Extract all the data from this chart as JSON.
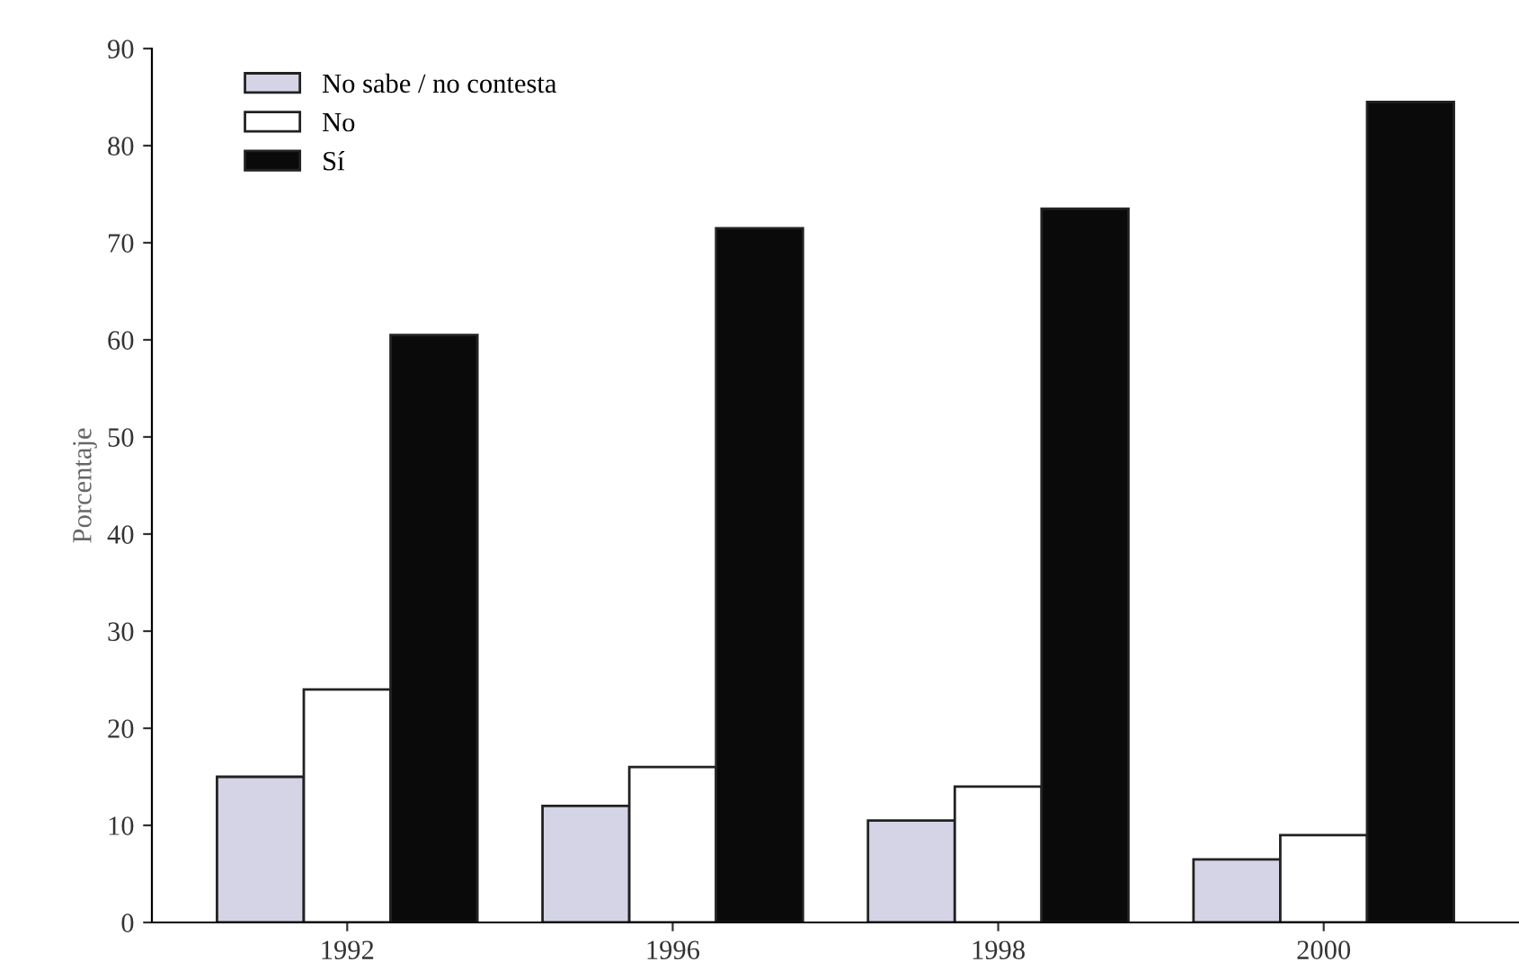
{
  "chart_data": {
    "type": "bar",
    "ylabel": "Porcentaje",
    "categories": [
      "1992",
      "1996",
      "1998",
      "2000"
    ],
    "series": [
      {
        "name": "No sabe / no contesta",
        "color": "#d4d4e6",
        "values": [
          15,
          12,
          10.5,
          6.5
        ]
      },
      {
        "name": "No",
        "color": "#ffffff",
        "values": [
          24,
          16,
          14,
          9
        ]
      },
      {
        "name": "Sí",
        "color": "#0a0a0a",
        "values": [
          60.5,
          71.5,
          73.5,
          84.5
        ]
      }
    ],
    "ylim": [
      0,
      90
    ],
    "yticks": [
      0,
      10,
      20,
      30,
      40,
      50,
      60,
      70,
      80,
      90
    ],
    "grid": false,
    "legend": "top left"
  }
}
